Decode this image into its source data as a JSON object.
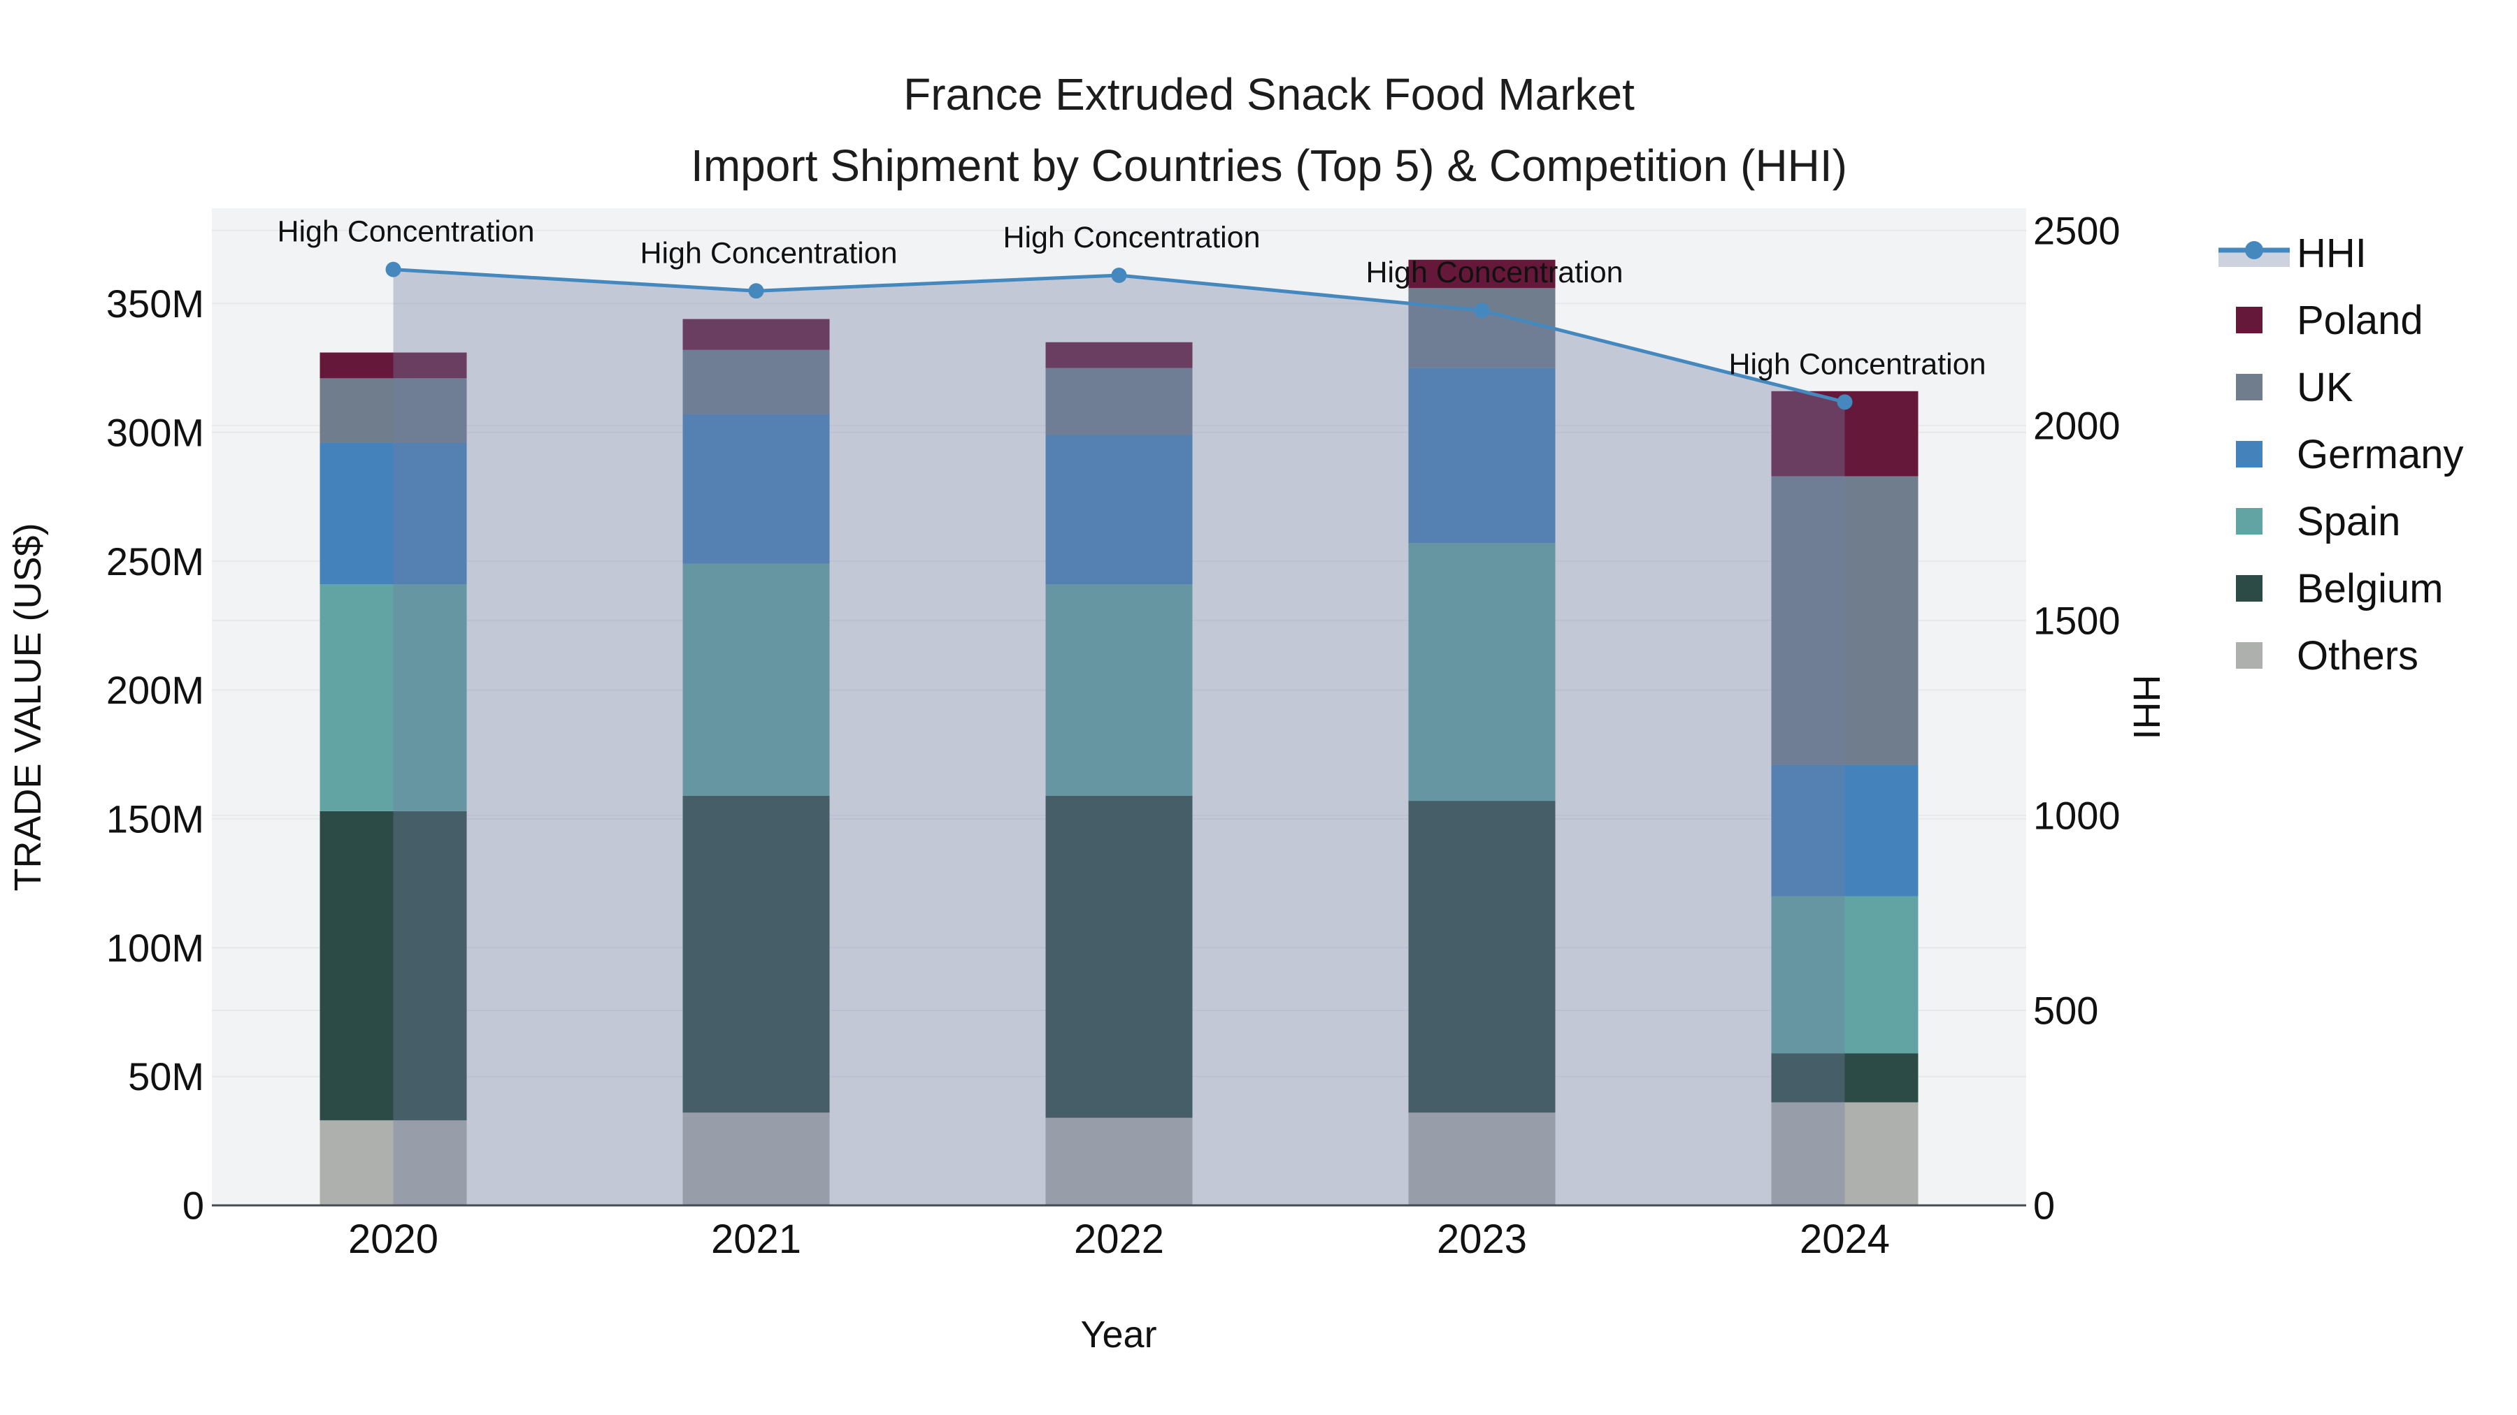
{
  "title": {
    "line1": "France Extruded Snack Food Market",
    "line2": "Import Shipment by Countries (Top 5) & Competition (HHI)"
  },
  "chart_data": {
    "type": "bar",
    "subtype": "stacked-bar-with-line-overlay",
    "title": "France Extruded Snack Food Market Import Shipment by Countries (Top 5) & Competition (HHI)",
    "categories": [
      "2020",
      "2021",
      "2022",
      "2023",
      "2024"
    ],
    "xlabel": "Year",
    "bar_unit": "M US$",
    "bar_series": [
      {
        "name": "Others",
        "color": "#AEB0AD",
        "values": [
          33,
          36,
          34,
          36,
          40
        ]
      },
      {
        "name": "Belgium",
        "color": "#2C4B46",
        "values": [
          120,
          123,
          125,
          121,
          19
        ]
      },
      {
        "name": "Spain",
        "color": "#61A4A3",
        "values": [
          88,
          90,
          82,
          100,
          61
        ]
      },
      {
        "name": "Germany",
        "color": "#4382BA",
        "values": [
          55,
          58,
          58,
          68,
          51
        ]
      },
      {
        "name": "UK",
        "color": "#707D8D",
        "values": [
          25,
          25,
          26,
          31,
          112
        ]
      },
      {
        "name": "Poland",
        "color": "#66183A",
        "values": [
          10,
          12,
          10,
          11,
          33
        ]
      }
    ],
    "bar_totals": [
      331,
      344,
      335,
      367,
      316
    ],
    "line_series": {
      "name": "HHI",
      "color": "#4588BE",
      "values": [
        2400,
        2345,
        2385,
        2295,
        2060
      ],
      "area_fill": "rgba(115,128,162,0.37)",
      "axis": "right"
    },
    "annotations": [
      {
        "text": "High Concentration",
        "x_index": 0
      },
      {
        "text": "High Concentration",
        "x_index": 1
      },
      {
        "text": "High Concentration",
        "x_index": 2
      },
      {
        "text": "High Concentration",
        "x_index": 3
      },
      {
        "text": "High Concentration",
        "x_index": 4
      }
    ],
    "left_axis": {
      "title": "TRADE VALUE (US$)",
      "tick_values": [
        0,
        50,
        100,
        150,
        200,
        250,
        300,
        350
      ],
      "tick_labels": [
        "0",
        "50M",
        "100M",
        "150M",
        "200M",
        "250M",
        "300M",
        "350M"
      ],
      "max": 387
    },
    "right_axis": {
      "title": "HHI",
      "tick_values": [
        0,
        500,
        1000,
        1500,
        2000,
        2500
      ],
      "tick_labels": [
        "0",
        "500",
        "1000",
        "1500",
        "2000",
        "2500"
      ],
      "max": 2557
    },
    "grid": true,
    "plot_bg": "#F2F3F4",
    "grid_color": "#E6E8EB",
    "axis_line_color": "#454B52",
    "legend_position": "right"
  },
  "legend": {
    "items": [
      {
        "label": "HHI",
        "type": "line",
        "color": "#4588BE",
        "band_color": "#CCD2DE"
      },
      {
        "label": "Poland",
        "type": "swatch",
        "color": "#66183A"
      },
      {
        "label": "UK",
        "type": "swatch",
        "color": "#707D8D"
      },
      {
        "label": "Germany",
        "type": "swatch",
        "color": "#4382BA"
      },
      {
        "label": "Spain",
        "type": "swatch",
        "color": "#61A4A3"
      },
      {
        "label": "Belgium",
        "type": "swatch",
        "color": "#2C4B46"
      },
      {
        "label": "Others",
        "type": "swatch",
        "color": "#AEB0AD"
      }
    ]
  }
}
